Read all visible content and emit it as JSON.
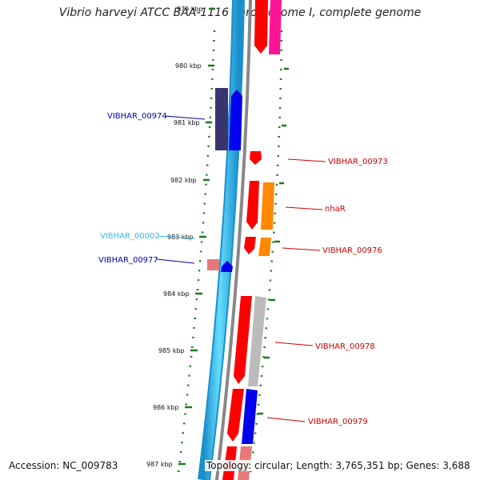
{
  "title": "Vibrio harveyi ATCC BAA-1116 chromosome I, complete genome",
  "accession": "Accession: NC_009783",
  "summary": "Topology: circular; Length: 3,765,351 bp; Genes: 3,688",
  "ticks": [
    {
      "label": "979 kbp"
    },
    {
      "label": "980 kbp"
    },
    {
      "label": "981 kbp"
    },
    {
      "label": "982 kbp"
    },
    {
      "label": "983 kbp"
    },
    {
      "label": "984 kbp"
    },
    {
      "label": "985 kbp"
    },
    {
      "label": "986 kbp"
    },
    {
      "label": "987 kbp"
    }
  ],
  "genes_left": [
    {
      "name": "VIBHAR_00974",
      "color": "#0000aa"
    },
    {
      "name": "VIBHAR_00002",
      "color": "#33bbee"
    },
    {
      "name": "VIBHAR_00977",
      "color": "#0000aa"
    }
  ],
  "genes_right": [
    {
      "name": "VIBHAR_00973",
      "color": "#cc0000"
    },
    {
      "name": "nhaR",
      "color": "#cc0000"
    },
    {
      "name": "VIBHAR_00976",
      "color": "#cc0000"
    },
    {
      "name": "VIBHAR_00978",
      "color": "#cc0000"
    },
    {
      "name": "VIBHAR_00979",
      "color": "#cc0000"
    }
  ],
  "colors": {
    "backbone": "#33ccff",
    "backbone_edge": "#1a8fcc",
    "gene_forward": "#ff0000",
    "gene_reverse": "#0000ee",
    "gene_dark": "#3a3570",
    "gene_orange": "#ff8800",
    "gene_magenta": "#ff1493",
    "gene_grey": "#bbbbbb",
    "gene_pink": "#e87878",
    "tick_green": "#1a7a1a"
  }
}
